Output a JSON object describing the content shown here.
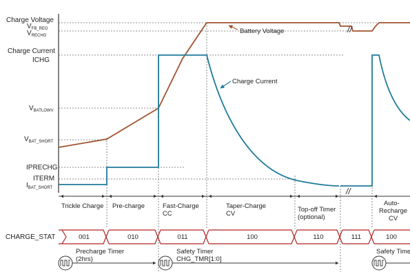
{
  "y_labels": {
    "charge_voltage": "Charge Voltage",
    "vfb_reg_main": "V",
    "vfb_reg_sub": "FB_REG",
    "vrechg_main": "V",
    "vrechg_sub": "RECHG",
    "charge_current": "Charge Current",
    "ichg": "ICHG",
    "vbatlowv_main": "V",
    "vbatlowv_sub": "BATLOWV",
    "vbat_short_main": "V",
    "vbat_short_sub": "BAT_SHORT",
    "iprechg": "IPRECHG",
    "iterm": "ITERM",
    "ibat_short_main": "I",
    "ibat_short_sub": "BAT_SHORT"
  },
  "curve_labels": {
    "battery_voltage": "Battery Voltage",
    "charge_current": "Charge Current"
  },
  "phases": {
    "trickle": "Trickle Charge",
    "precharge": "Pre-charge",
    "fast_l1": "Fast-Charge",
    "fast_l2": "CC",
    "taper_l1": "Taper-Charge",
    "taper_l2": "CV",
    "topoff_l1": "Top-off Timer",
    "topoff_l2": "(optional)",
    "auto_l1": "Auto-",
    "auto_l2": "Recharge",
    "auto_l3": "CV"
  },
  "charge_stat": {
    "label": "CHARGE_STAT",
    "codes": [
      "001",
      "010",
      "011",
      "100",
      "110",
      "111",
      "100"
    ]
  },
  "timers": {
    "precharge_l1": "Precharge Timer",
    "precharge_l2": "(2hrs)",
    "safety_l1": "Safety Timer",
    "safety_l2": "CHG_TMR[1:0]",
    "safety_right": "Safety Time"
  },
  "break_symbol": "//",
  "colors": {
    "voltage": "#a0522d",
    "current": "#1f7a99",
    "status": "#b22222",
    "grid": "#555555"
  }
}
